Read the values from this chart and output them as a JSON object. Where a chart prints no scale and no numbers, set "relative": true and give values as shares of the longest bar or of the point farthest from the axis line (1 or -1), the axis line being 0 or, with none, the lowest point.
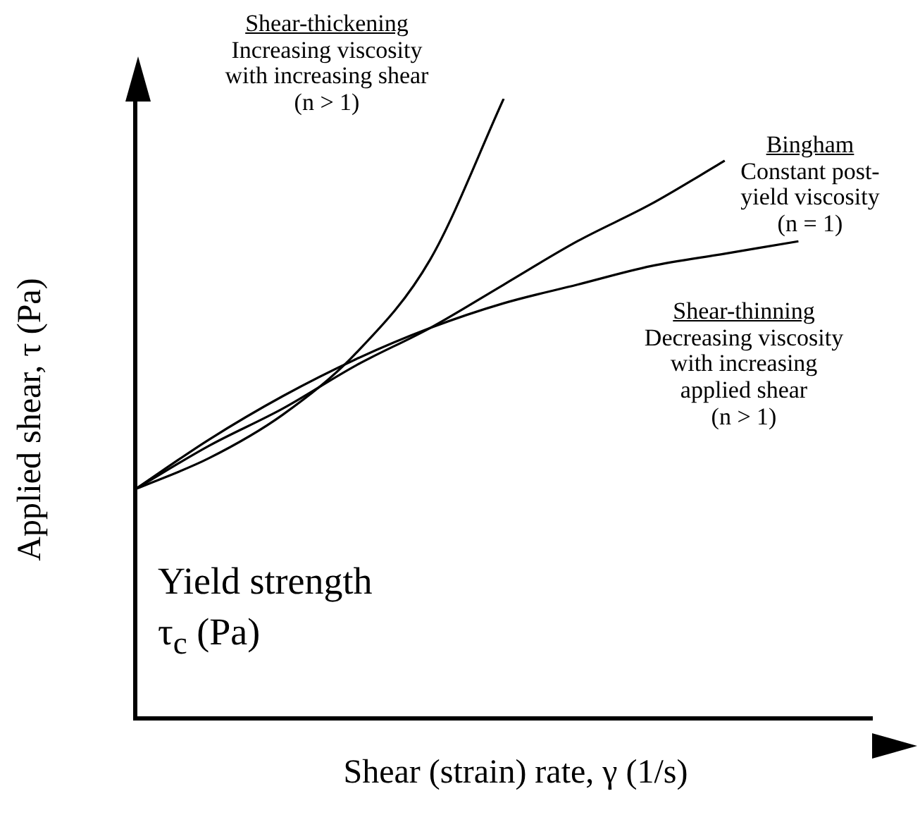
{
  "chart_data": {
    "type": "line",
    "relative": true,
    "xlabel": "Shear (strain) rate, γ (1/s)",
    "ylabel": "Applied shear, τ (Pa)",
    "categories": [
      null,
      null,
      null,
      null,
      null,
      null,
      null,
      null,
      null,
      null,
      null
    ],
    "series": [
      {
        "color": "#000000",
        "values": [
          0.37,
          0.42,
          0.49,
          0.59,
          0.74,
          1.0,
          null,
          null,
          null,
          null,
          null
        ]
      },
      {
        "color": "#000000",
        "values": [
          0.37,
          0.44,
          0.5,
          0.57,
          0.63,
          0.7,
          0.77,
          0.83,
          0.9,
          null,
          null
        ]
      },
      {
        "color": "#000000",
        "values": [
          0.37,
          0.45,
          0.52,
          0.58,
          0.63,
          0.67,
          0.7,
          0.73,
          0.75,
          0.77,
          null
        ]
      }
    ],
    "annotations": [
      "Shear-thickening\nIncreasing viscosity\nwith increasing shear\n(n > 1)",
      "Bingham\nConstant post-\nyield viscosity\n(n = 1)",
      "Shear-thinning\nDecreasing viscosity\nwith increasing\napplied shear\n(n > 1)",
      "Yield strength\nτ$_{c}$ (Pa)"
    ],
    "legend": false,
    "grid": false,
    "marker": "none"
  }
}
